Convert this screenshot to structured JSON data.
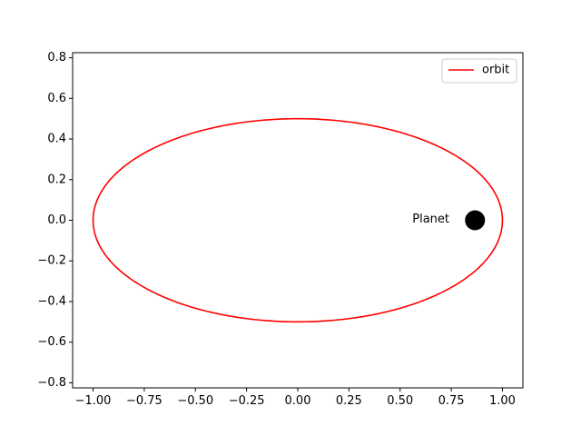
{
  "chart_data": {
    "type": "line",
    "title": "",
    "xlabel": "",
    "ylabel": "",
    "xlim": [
      -1.1,
      1.1
    ],
    "ylim": [
      -0.825,
      0.825
    ],
    "xticks": [
      -1.0,
      -0.75,
      -0.5,
      -0.25,
      0.0,
      0.25,
      0.5,
      0.75,
      1.0
    ],
    "xtick_labels": [
      "−1.00",
      "−0.75",
      "−0.50",
      "−0.25",
      "0.00",
      "0.25",
      "0.50",
      "0.75",
      "1.00"
    ],
    "yticks": [
      -0.8,
      -0.6,
      -0.4,
      -0.2,
      0.0,
      0.2,
      0.4,
      0.6,
      0.8
    ],
    "ytick_labels": [
      "−0.8",
      "−0.6",
      "−0.4",
      "−0.2",
      "0.0",
      "0.2",
      "0.4",
      "0.6",
      "0.8"
    ],
    "grid": false,
    "legend_position": "top-right",
    "series": [
      {
        "name": "orbit",
        "kind": "ellipse",
        "semi_major_x": 1.0,
        "semi_minor_y": 0.5,
        "center": [
          0.0,
          0.0
        ],
        "color": "#ff0000"
      }
    ],
    "points": [
      {
        "x": 0.866,
        "y": 0.0,
        "color": "#000000",
        "label": "Planet"
      }
    ],
    "annotations": [
      {
        "text": "Planet",
        "x": 0.56,
        "y": 0.0
      }
    ]
  }
}
